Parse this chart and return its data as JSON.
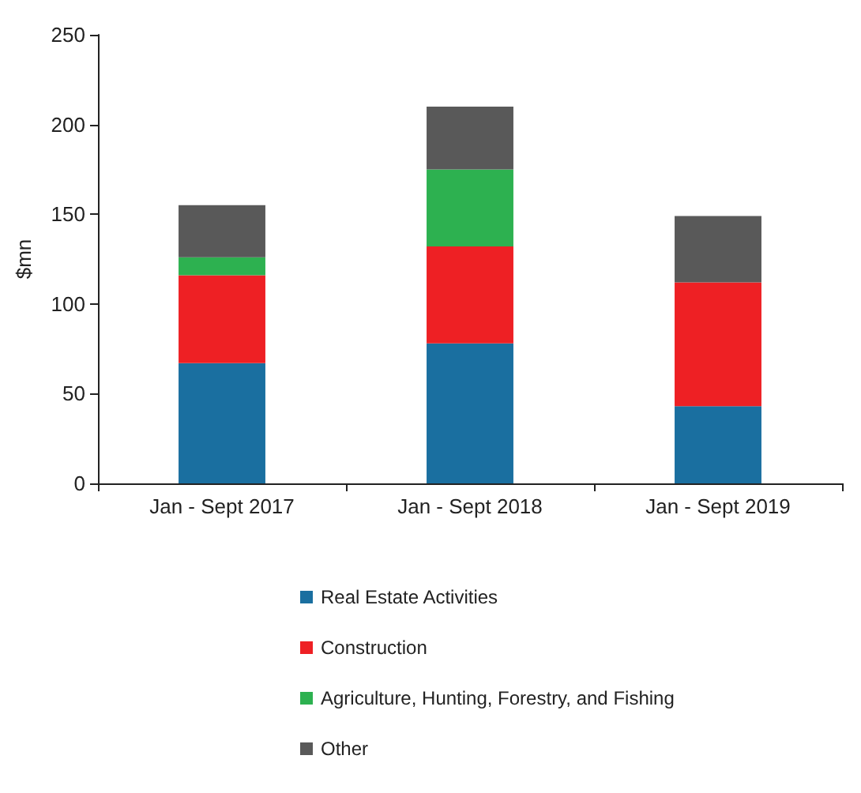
{
  "chart_data": {
    "type": "bar",
    "stacked": true,
    "ylabel": "$mn",
    "categories": [
      "Jan - Sept 2017",
      "Jan - Sept 2018",
      "Jan - Sept 2019"
    ],
    "series": [
      {
        "name": "Real Estate Activities",
        "color": "#1a6fa0",
        "values": [
          67,
          78,
          43
        ]
      },
      {
        "name": "Construction",
        "color": "#ee2024",
        "values": [
          49,
          54,
          69
        ]
      },
      {
        "name": "Agriculture, Hunting, Forestry, and Fishing",
        "color": "#2db150",
        "values": [
          10,
          43,
          0
        ]
      },
      {
        "name": "Other",
        "color": "#595959",
        "values": [
          29,
          35,
          37
        ]
      }
    ],
    "ylim": [
      0,
      250
    ],
    "yticks": [
      0,
      50,
      100,
      150,
      200,
      250
    ],
    "grid": false,
    "legend": "bottom"
  }
}
